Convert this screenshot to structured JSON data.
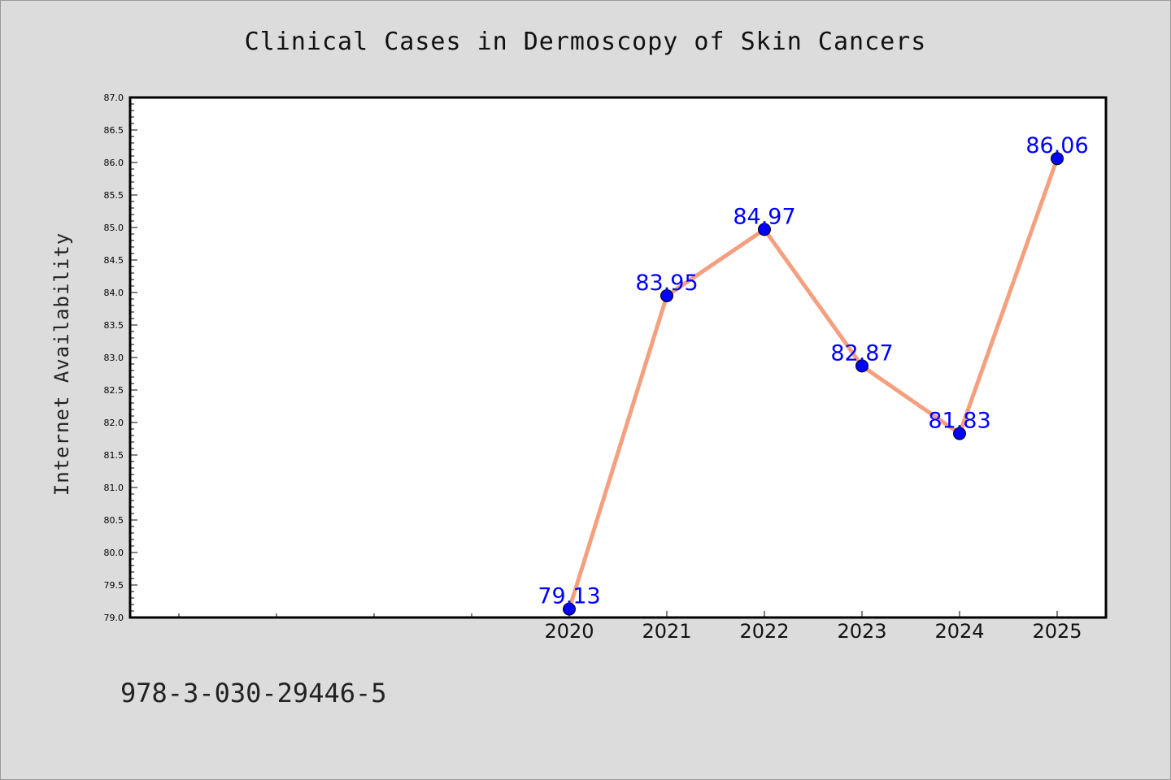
{
  "chart_data": {
    "type": "line",
    "title": "Clinical Cases in Dermoscopy of Skin Cancers",
    "xlabel": "",
    "ylabel": "Internet Availability",
    "x": [
      "2020",
      "2021",
      "2022",
      "2023",
      "2024",
      "2025"
    ],
    "series": [
      {
        "values": [
          79.13,
          83.95,
          84.97,
          82.87,
          81.83,
          86.06
        ]
      }
    ],
    "data_labels": [
      "79.13",
      "83.95",
      "84.97",
      "82.87",
      "81.83",
      "86.06"
    ],
    "ylim": [
      79.0,
      87.0
    ],
    "y_ticks": [
      "79.0",
      "79.5",
      "80.0",
      "80.5",
      "81.0",
      "81.5",
      "82.0",
      "82.5",
      "83.0",
      "83.5",
      "84.0",
      "84.5",
      "85.0",
      "85.5",
      "86.0",
      "86.5",
      "87.0"
    ],
    "grid": false,
    "colors": {
      "line": "#f4a07f",
      "marker": "#0000ff",
      "label": "#0000ff",
      "background": "#dcdcdc",
      "plot_area": "#ffffff"
    }
  },
  "footer": {
    "code": "978-3-030-29446-5"
  }
}
